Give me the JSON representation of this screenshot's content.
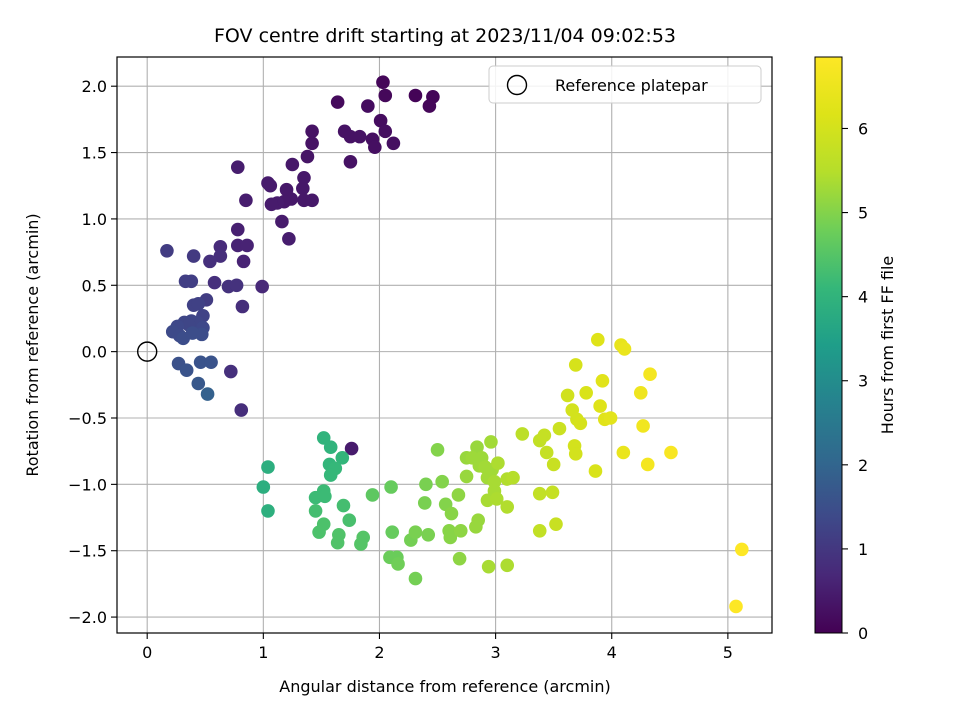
{
  "chart_data": {
    "type": "scatter",
    "title": "FOV centre drift starting at 2023/11/04 09:02:53",
    "xlabel": "Angular distance from reference (arcmin)",
    "ylabel": "Rotation from reference (arcmin)",
    "xlim": [
      -0.26,
      5.38
    ],
    "ylim": [
      -2.12,
      2.22
    ],
    "xticks": [
      0,
      1,
      2,
      3,
      4,
      5
    ],
    "yticks": [
      -2.0,
      -1.5,
      -1.0,
      -0.5,
      0.0,
      0.5,
      1.0,
      1.5,
      2.0
    ],
    "xtick_labels": [
      "0",
      "1",
      "2",
      "3",
      "4",
      "5"
    ],
    "ytick_labels": [
      "−2.0",
      "−1.5",
      "−1.0",
      "−0.5",
      "0.0",
      "0.5",
      "1.0",
      "1.5",
      "2.0"
    ],
    "grid": true,
    "legend": {
      "position": "top-right",
      "entries": [
        "Reference platepar"
      ]
    },
    "reference_point": {
      "x": 0.0,
      "y": 0.0
    },
    "colorbar": {
      "label": "Hours from first FF file",
      "colormap": "viridis",
      "range": [
        0,
        6.85
      ],
      "ticks": [
        0,
        1,
        2,
        3,
        4,
        5,
        6
      ],
      "tick_labels": [
        "0",
        "1",
        "2",
        "3",
        "4",
        "5",
        "6"
      ]
    },
    "series": [
      {
        "values": [
          {
            "x": 2.03,
            "y": 2.03,
            "c": 0.1
          },
          {
            "x": 2.05,
            "y": 1.93,
            "c": 0.12
          },
          {
            "x": 2.31,
            "y": 1.93,
            "c": 0.05
          },
          {
            "x": 2.46,
            "y": 1.92,
            "c": 0.08
          },
          {
            "x": 2.43,
            "y": 1.85,
            "c": 0.1
          },
          {
            "x": 1.64,
            "y": 1.88,
            "c": 0.15
          },
          {
            "x": 1.9,
            "y": 1.85,
            "c": 0.2
          },
          {
            "x": 2.01,
            "y": 1.74,
            "c": 0.2
          },
          {
            "x": 2.05,
            "y": 1.66,
            "c": 0.22
          },
          {
            "x": 1.94,
            "y": 1.6,
            "c": 0.25
          },
          {
            "x": 1.96,
            "y": 1.54,
            "c": 0.25
          },
          {
            "x": 2.12,
            "y": 1.57,
            "c": 0.25
          },
          {
            "x": 1.83,
            "y": 1.62,
            "c": 0.3
          },
          {
            "x": 1.7,
            "y": 1.66,
            "c": 0.3
          },
          {
            "x": 1.75,
            "y": 1.62,
            "c": 0.3
          },
          {
            "x": 1.75,
            "y": 1.43,
            "c": 0.3
          },
          {
            "x": 1.42,
            "y": 1.66,
            "c": 0.3
          },
          {
            "x": 1.42,
            "y": 1.57,
            "c": 0.3
          },
          {
            "x": 1.38,
            "y": 1.47,
            "c": 0.35
          },
          {
            "x": 1.25,
            "y": 1.41,
            "c": 0.4
          },
          {
            "x": 1.35,
            "y": 1.31,
            "c": 0.4
          },
          {
            "x": 1.34,
            "y": 1.23,
            "c": 0.4
          },
          {
            "x": 1.2,
            "y": 1.22,
            "c": 0.4
          },
          {
            "x": 1.24,
            "y": 1.15,
            "c": 0.4
          },
          {
            "x": 1.18,
            "y": 1.13,
            "c": 0.4
          },
          {
            "x": 1.12,
            "y": 1.12,
            "c": 0.45
          },
          {
            "x": 1.35,
            "y": 1.14,
            "c": 0.4
          },
          {
            "x": 1.42,
            "y": 1.14,
            "c": 0.4
          },
          {
            "x": 1.06,
            "y": 1.25,
            "c": 0.45
          },
          {
            "x": 1.04,
            "y": 1.27,
            "c": 0.45
          },
          {
            "x": 1.07,
            "y": 1.11,
            "c": 0.45
          },
          {
            "x": 1.16,
            "y": 0.98,
            "c": 0.45
          },
          {
            "x": 1.22,
            "y": 0.85,
            "c": 0.5
          },
          {
            "x": 0.85,
            "y": 1.14,
            "c": 0.5
          },
          {
            "x": 0.78,
            "y": 1.39,
            "c": 0.5
          },
          {
            "x": 0.78,
            "y": 0.92,
            "c": 0.55
          },
          {
            "x": 0.78,
            "y": 0.8,
            "c": 0.6
          },
          {
            "x": 0.86,
            "y": 0.8,
            "c": 0.6
          },
          {
            "x": 0.83,
            "y": 0.68,
            "c": 0.6
          },
          {
            "x": 0.99,
            "y": 0.49,
            "c": 0.7
          },
          {
            "x": 0.82,
            "y": 0.34,
            "c": 0.8
          },
          {
            "x": 0.81,
            "y": -0.44,
            "c": 0.8
          },
          {
            "x": 0.63,
            "y": 0.79,
            "c": 0.75
          },
          {
            "x": 0.63,
            "y": 0.72,
            "c": 0.8
          },
          {
            "x": 0.54,
            "y": 0.68,
            "c": 0.85
          },
          {
            "x": 0.58,
            "y": 0.52,
            "c": 0.85
          },
          {
            "x": 0.7,
            "y": 0.49,
            "c": 0.9
          },
          {
            "x": 0.77,
            "y": 0.5,
            "c": 0.9
          },
          {
            "x": 0.72,
            "y": -0.15,
            "c": 0.85
          },
          {
            "x": 0.17,
            "y": 0.76,
            "c": 1.1
          },
          {
            "x": 0.4,
            "y": 0.72,
            "c": 1.05
          },
          {
            "x": 0.33,
            "y": 0.53,
            "c": 1.15
          },
          {
            "x": 0.38,
            "y": 0.53,
            "c": 1.15
          },
          {
            "x": 0.51,
            "y": 0.39,
            "c": 1.1
          },
          {
            "x": 0.4,
            "y": 0.35,
            "c": 1.2
          },
          {
            "x": 0.44,
            "y": 0.36,
            "c": 1.2
          },
          {
            "x": 0.48,
            "y": 0.27,
            "c": 1.25
          },
          {
            "x": 0.38,
            "y": 0.23,
            "c": 1.3
          },
          {
            "x": 0.32,
            "y": 0.22,
            "c": 1.3
          },
          {
            "x": 0.43,
            "y": 0.22,
            "c": 1.3
          },
          {
            "x": 0.36,
            "y": 0.2,
            "c": 1.3
          },
          {
            "x": 0.26,
            "y": 0.19,
            "c": 1.35
          },
          {
            "x": 0.48,
            "y": 0.18,
            "c": 1.35
          },
          {
            "x": 0.22,
            "y": 0.15,
            "c": 1.4
          },
          {
            "x": 0.28,
            "y": 0.12,
            "c": 1.4
          },
          {
            "x": 0.31,
            "y": 0.1,
            "c": 1.45
          },
          {
            "x": 0.47,
            "y": 0.13,
            "c": 1.45
          },
          {
            "x": 0.39,
            "y": 0.14,
            "c": 1.45
          },
          {
            "x": 0.27,
            "y": -0.09,
            "c": 1.55
          },
          {
            "x": 0.46,
            "y": -0.08,
            "c": 1.6
          },
          {
            "x": 0.55,
            "y": -0.08,
            "c": 1.6
          },
          {
            "x": 0.34,
            "y": -0.14,
            "c": 1.6
          },
          {
            "x": 0.44,
            "y": -0.24,
            "c": 1.7
          },
          {
            "x": 0.52,
            "y": -0.32,
            "c": 1.9
          },
          {
            "x": 1.04,
            "y": -0.87,
            "c": 3.85
          },
          {
            "x": 1.0,
            "y": -1.02,
            "c": 3.85
          },
          {
            "x": 1.04,
            "y": -1.2,
            "c": 3.9
          },
          {
            "x": 1.52,
            "y": -0.65,
            "c": 4.0
          },
          {
            "x": 1.58,
            "y": -0.72,
            "c": 4.0
          },
          {
            "x": 1.76,
            "y": -0.73,
            "c": 0.45
          },
          {
            "x": 1.68,
            "y": -0.8,
            "c": 4.05
          },
          {
            "x": 1.57,
            "y": -0.85,
            "c": 4.05
          },
          {
            "x": 1.62,
            "y": -0.88,
            "c": 4.1
          },
          {
            "x": 1.58,
            "y": -0.93,
            "c": 4.1
          },
          {
            "x": 1.52,
            "y": -1.05,
            "c": 4.2
          },
          {
            "x": 1.45,
            "y": -1.1,
            "c": 4.2
          },
          {
            "x": 1.53,
            "y": -1.09,
            "c": 4.2
          },
          {
            "x": 1.69,
            "y": -1.16,
            "c": 4.3
          },
          {
            "x": 1.45,
            "y": -1.2,
            "c": 4.3
          },
          {
            "x": 1.74,
            "y": -1.27,
            "c": 4.35
          },
          {
            "x": 1.52,
            "y": -1.3,
            "c": 4.4
          },
          {
            "x": 1.48,
            "y": -1.36,
            "c": 4.4
          },
          {
            "x": 1.65,
            "y": -1.38,
            "c": 4.45
          },
          {
            "x": 1.64,
            "y": -1.44,
            "c": 4.45
          },
          {
            "x": 1.86,
            "y": -1.4,
            "c": 4.5
          },
          {
            "x": 1.84,
            "y": -1.45,
            "c": 4.5
          },
          {
            "x": 1.94,
            "y": -1.08,
            "c": 4.6
          },
          {
            "x": 2.1,
            "y": -1.02,
            "c": 4.7
          },
          {
            "x": 2.11,
            "y": -1.36,
            "c": 4.7
          },
          {
            "x": 2.09,
            "y": -1.55,
            "c": 4.75
          },
          {
            "x": 2.15,
            "y": -1.55,
            "c": 4.75
          },
          {
            "x": 2.16,
            "y": -1.6,
            "c": 4.8
          },
          {
            "x": 2.31,
            "y": -1.71,
            "c": 4.85
          },
          {
            "x": 2.27,
            "y": -1.42,
            "c": 4.85
          },
          {
            "x": 2.31,
            "y": -1.36,
            "c": 4.9
          },
          {
            "x": 2.42,
            "y": -1.38,
            "c": 4.9
          },
          {
            "x": 2.39,
            "y": -1.14,
            "c": 4.9
          },
          {
            "x": 2.4,
            "y": -1.0,
            "c": 4.9
          },
          {
            "x": 2.5,
            "y": -0.74,
            "c": 5.0
          },
          {
            "x": 2.54,
            "y": -0.98,
            "c": 5.0
          },
          {
            "x": 2.57,
            "y": -1.15,
            "c": 5.0
          },
          {
            "x": 2.62,
            "y": -1.22,
            "c": 5.05
          },
          {
            "x": 2.6,
            "y": -1.35,
            "c": 5.05
          },
          {
            "x": 2.61,
            "y": -1.4,
            "c": 5.05
          },
          {
            "x": 2.68,
            "y": -1.08,
            "c": 5.1
          },
          {
            "x": 2.7,
            "y": -1.35,
            "c": 5.1
          },
          {
            "x": 2.69,
            "y": -1.56,
            "c": 5.1
          },
          {
            "x": 2.75,
            "y": -0.8,
            "c": 5.2
          },
          {
            "x": 2.75,
            "y": -0.94,
            "c": 5.2
          },
          {
            "x": 2.84,
            "y": -0.72,
            "c": 5.2
          },
          {
            "x": 2.8,
            "y": -0.8,
            "c": 5.25
          },
          {
            "x": 2.86,
            "y": -0.86,
            "c": 5.25
          },
          {
            "x": 2.88,
            "y": -0.8,
            "c": 5.25
          },
          {
            "x": 2.91,
            "y": -0.87,
            "c": 5.3
          },
          {
            "x": 2.93,
            "y": -0.95,
            "c": 5.3
          },
          {
            "x": 2.96,
            "y": -0.68,
            "c": 5.3
          },
          {
            "x": 2.97,
            "y": -0.89,
            "c": 5.3
          },
          {
            "x": 2.99,
            "y": -0.98,
            "c": 5.35
          },
          {
            "x": 3.02,
            "y": -0.84,
            "c": 5.4
          },
          {
            "x": 2.93,
            "y": -1.12,
            "c": 5.35
          },
          {
            "x": 2.99,
            "y": -1.05,
            "c": 5.35
          },
          {
            "x": 3.01,
            "y": -1.11,
            "c": 5.4
          },
          {
            "x": 2.85,
            "y": -1.27,
            "c": 5.2
          },
          {
            "x": 2.83,
            "y": -1.32,
            "c": 5.2
          },
          {
            "x": 2.94,
            "y": -1.62,
            "c": 5.35
          },
          {
            "x": 3.1,
            "y": -1.61,
            "c": 5.4
          },
          {
            "x": 3.1,
            "y": -1.17,
            "c": 5.45
          },
          {
            "x": 3.1,
            "y": -0.96,
            "c": 5.45
          },
          {
            "x": 3.15,
            "y": -0.95,
            "c": 5.5
          },
          {
            "x": 3.23,
            "y": -0.62,
            "c": 5.6
          },
          {
            "x": 3.38,
            "y": -0.67,
            "c": 5.7
          },
          {
            "x": 3.42,
            "y": -0.63,
            "c": 5.75
          },
          {
            "x": 3.44,
            "y": -0.76,
            "c": 5.75
          },
          {
            "x": 3.5,
            "y": -0.85,
            "c": 5.8
          },
          {
            "x": 3.38,
            "y": -1.07,
            "c": 5.7
          },
          {
            "x": 3.49,
            "y": -1.06,
            "c": 5.75
          },
          {
            "x": 3.52,
            "y": -1.3,
            "c": 5.8
          },
          {
            "x": 3.38,
            "y": -1.35,
            "c": 5.7
          },
          {
            "x": 3.55,
            "y": -0.58,
            "c": 5.85
          },
          {
            "x": 3.62,
            "y": -0.33,
            "c": 5.95
          },
          {
            "x": 3.66,
            "y": -0.44,
            "c": 6.0
          },
          {
            "x": 3.7,
            "y": -0.51,
            "c": 6.0
          },
          {
            "x": 3.68,
            "y": -0.71,
            "c": 6.0
          },
          {
            "x": 3.69,
            "y": -0.77,
            "c": 6.0
          },
          {
            "x": 3.73,
            "y": -0.54,
            "c": 6.05
          },
          {
            "x": 3.69,
            "y": -0.1,
            "c": 6.05
          },
          {
            "x": 3.78,
            "y": -0.31,
            "c": 6.1
          },
          {
            "x": 3.86,
            "y": -0.9,
            "c": 6.1
          },
          {
            "x": 3.88,
            "y": 0.09,
            "c": 6.2
          },
          {
            "x": 3.9,
            "y": -0.41,
            "c": 6.2
          },
          {
            "x": 3.92,
            "y": -0.22,
            "c": 6.25
          },
          {
            "x": 3.94,
            "y": -0.51,
            "c": 6.25
          },
          {
            "x": 3.99,
            "y": -0.5,
            "c": 6.3
          },
          {
            "x": 4.08,
            "y": 0.05,
            "c": 6.4
          },
          {
            "x": 4.11,
            "y": 0.02,
            "c": 6.45
          },
          {
            "x": 4.1,
            "y": -0.76,
            "c": 6.45
          },
          {
            "x": 4.25,
            "y": -0.31,
            "c": 6.55
          },
          {
            "x": 4.27,
            "y": -0.56,
            "c": 6.6
          },
          {
            "x": 4.31,
            "y": -0.85,
            "c": 6.65
          },
          {
            "x": 4.33,
            "y": -0.17,
            "c": 6.65
          },
          {
            "x": 4.51,
            "y": -0.76,
            "c": 6.75
          },
          {
            "x": 5.12,
            "y": -1.49,
            "c": 6.85
          },
          {
            "x": 5.07,
            "y": -1.92,
            "c": 6.85
          }
        ]
      }
    ]
  }
}
